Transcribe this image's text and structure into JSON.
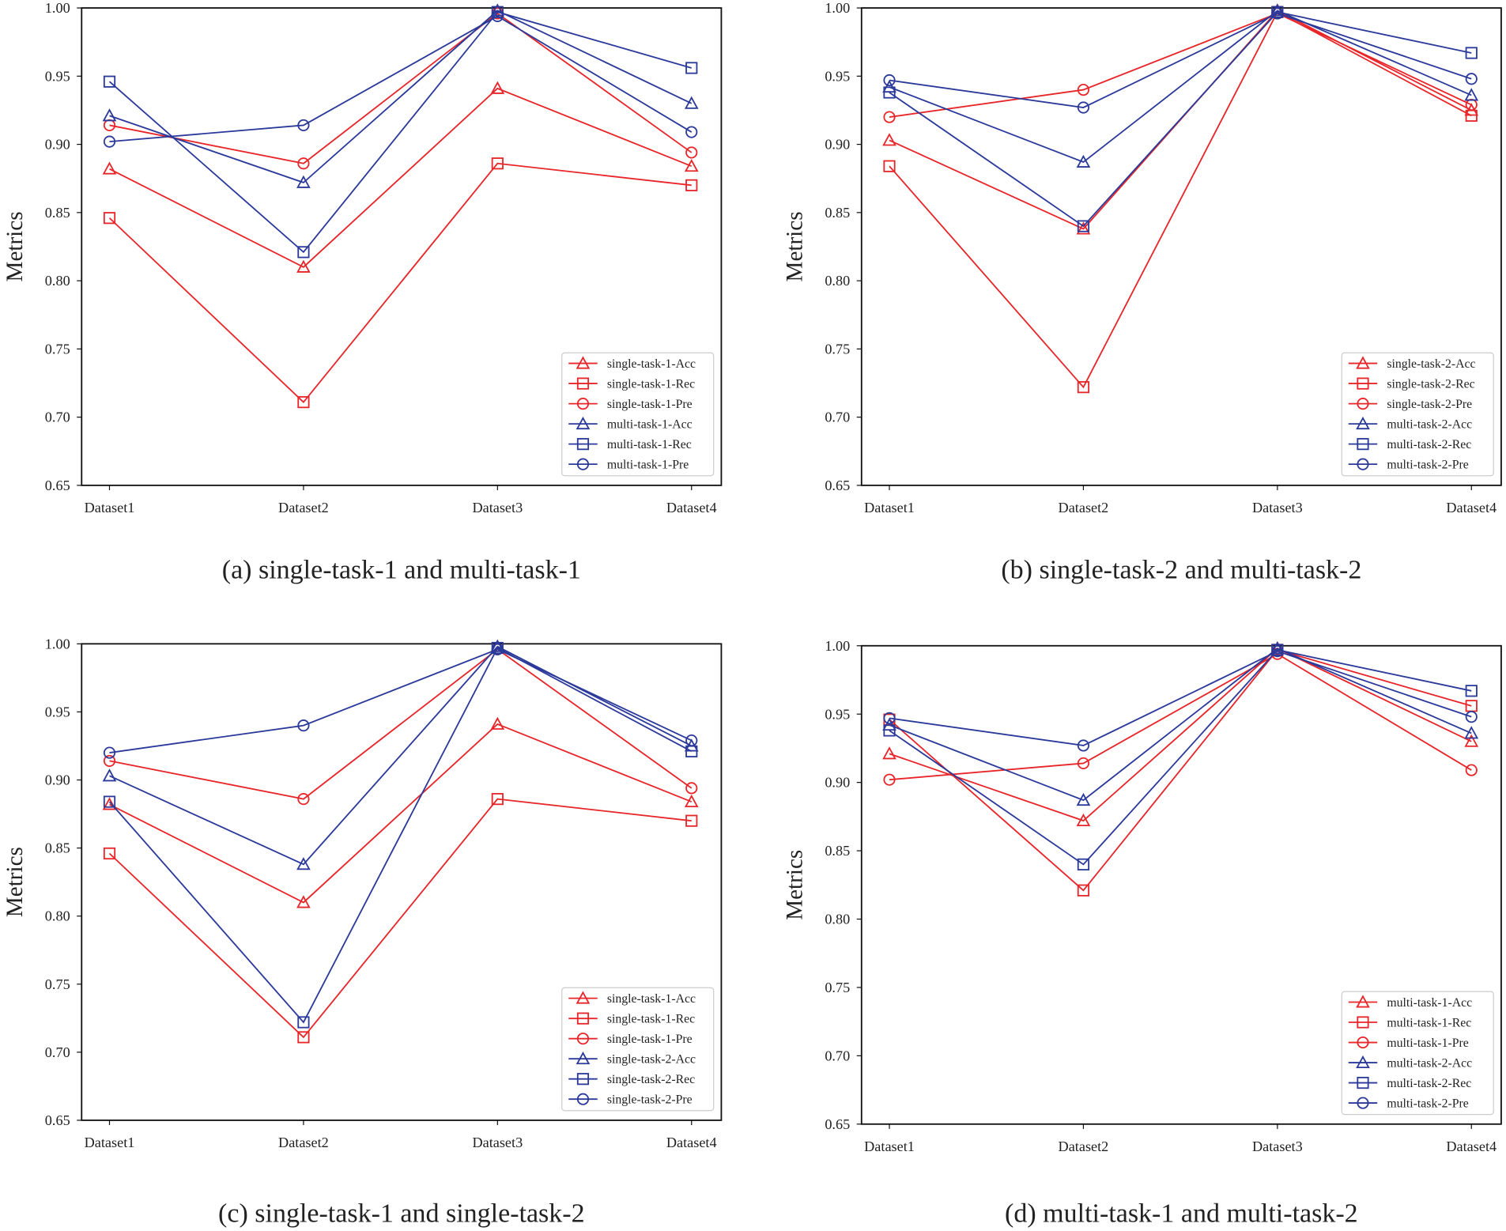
{
  "colors": {
    "red": "#e8262a",
    "blue": "#2b3a9a"
  },
  "chart_data": [
    {
      "type": "line",
      "caption": "(a) single-task-1 and multi-task-1",
      "ylabel": "Metrics",
      "categories": [
        "Dataset1",
        "Dataset2",
        "Dataset3",
        "Dataset4"
      ],
      "ylim": [
        0.65,
        1.0
      ],
      "yticks": [
        "0.65",
        "0.70",
        "0.75",
        "0.80",
        "0.85",
        "0.90",
        "0.95",
        "1.00"
      ],
      "grid": false,
      "legend_position": "lower-right",
      "series": [
        {
          "name": "single-task-1-Acc",
          "color": "red",
          "marker": "triangle",
          "values": [
            0.882,
            0.81,
            0.941,
            0.884
          ]
        },
        {
          "name": "single-task-1-Rec",
          "color": "red",
          "marker": "square",
          "values": [
            0.846,
            0.711,
            0.886,
            0.87
          ]
        },
        {
          "name": "single-task-1-Pre",
          "color": "red",
          "marker": "circle",
          "values": [
            0.914,
            0.886,
            0.996,
            0.894
          ]
        },
        {
          "name": "multi-task-1-Acc",
          "color": "blue",
          "marker": "triangle",
          "values": [
            0.921,
            0.872,
            0.998,
            0.93
          ]
        },
        {
          "name": "multi-task-1-Rec",
          "color": "blue",
          "marker": "square",
          "values": [
            0.946,
            0.821,
            0.997,
            0.956
          ]
        },
        {
          "name": "multi-task-1-Pre",
          "color": "blue",
          "marker": "circle",
          "values": [
            0.902,
            0.914,
            0.994,
            0.909
          ]
        }
      ]
    },
    {
      "type": "line",
      "caption": "(b) single-task-2 and multi-task-2",
      "ylabel": "Metrics",
      "categories": [
        "Dataset1",
        "Dataset2",
        "Dataset3",
        "Dataset4"
      ],
      "ylim": [
        0.65,
        1.0
      ],
      "yticks": [
        "0.65",
        "0.70",
        "0.75",
        "0.80",
        "0.85",
        "0.90",
        "0.95",
        "1.00"
      ],
      "grid": false,
      "legend_position": "lower-right",
      "series": [
        {
          "name": "single-task-2-Acc",
          "color": "red",
          "marker": "triangle",
          "values": [
            0.903,
            0.838,
            0.998,
            0.925
          ]
        },
        {
          "name": "single-task-2-Rec",
          "color": "red",
          "marker": "square",
          "values": [
            0.884,
            0.722,
            0.997,
            0.921
          ]
        },
        {
          "name": "single-task-2-Pre",
          "color": "red",
          "marker": "circle",
          "values": [
            0.92,
            0.94,
            0.996,
            0.929
          ]
        },
        {
          "name": "multi-task-2-Acc",
          "color": "blue",
          "marker": "triangle",
          "values": [
            0.942,
            0.887,
            0.998,
            0.936
          ]
        },
        {
          "name": "multi-task-2-Rec",
          "color": "blue",
          "marker": "square",
          "values": [
            0.938,
            0.84,
            0.997,
            0.967
          ]
        },
        {
          "name": "multi-task-2-Pre",
          "color": "blue",
          "marker": "circle",
          "values": [
            0.947,
            0.927,
            0.996,
            0.948
          ]
        }
      ]
    },
    {
      "type": "line",
      "caption": "(c) single-task-1 and single-task-2",
      "ylabel": "Metrics",
      "categories": [
        "Dataset1",
        "Dataset2",
        "Dataset3",
        "Dataset4"
      ],
      "ylim": [
        0.65,
        1.0
      ],
      "yticks": [
        "0.65",
        "0.70",
        "0.75",
        "0.80",
        "0.85",
        "0.90",
        "0.95",
        "1.00"
      ],
      "grid": false,
      "legend_position": "lower-right",
      "series": [
        {
          "name": "single-task-1-Acc",
          "color": "red",
          "marker": "triangle",
          "values": [
            0.882,
            0.81,
            0.941,
            0.884
          ]
        },
        {
          "name": "single-task-1-Rec",
          "color": "red",
          "marker": "square",
          "values": [
            0.846,
            0.711,
            0.886,
            0.87
          ]
        },
        {
          "name": "single-task-1-Pre",
          "color": "red",
          "marker": "circle",
          "values": [
            0.914,
            0.886,
            0.996,
            0.894
          ]
        },
        {
          "name": "single-task-2-Acc",
          "color": "blue",
          "marker": "triangle",
          "values": [
            0.903,
            0.838,
            0.998,
            0.925
          ]
        },
        {
          "name": "single-task-2-Rec",
          "color": "blue",
          "marker": "square",
          "values": [
            0.884,
            0.722,
            0.997,
            0.921
          ]
        },
        {
          "name": "single-task-2-Pre",
          "color": "blue",
          "marker": "circle",
          "values": [
            0.92,
            0.94,
            0.996,
            0.929
          ]
        }
      ]
    },
    {
      "type": "line",
      "caption": "(d) multi-task-1 and multi-task-2",
      "ylabel": "Metrics",
      "categories": [
        "Dataset1",
        "Dataset2",
        "Dataset3",
        "Dataset4"
      ],
      "ylim": [
        0.65,
        1.0
      ],
      "yticks": [
        "0.65",
        "0.70",
        "0.75",
        "0.80",
        "0.85",
        "0.90",
        "0.95",
        "1.00"
      ],
      "grid": false,
      "legend_position": "lower-right",
      "series": [
        {
          "name": "multi-task-1-Acc",
          "color": "red",
          "marker": "triangle",
          "values": [
            0.921,
            0.872,
            0.998,
            0.93
          ]
        },
        {
          "name": "multi-task-1-Rec",
          "color": "red",
          "marker": "square",
          "values": [
            0.946,
            0.821,
            0.997,
            0.956
          ]
        },
        {
          "name": "multi-task-1-Pre",
          "color": "red",
          "marker": "circle",
          "values": [
            0.902,
            0.914,
            0.994,
            0.909
          ]
        },
        {
          "name": "multi-task-2-Acc",
          "color": "blue",
          "marker": "triangle",
          "values": [
            0.942,
            0.887,
            0.998,
            0.936
          ]
        },
        {
          "name": "multi-task-2-Rec",
          "color": "blue",
          "marker": "square",
          "values": [
            0.938,
            0.84,
            0.997,
            0.967
          ]
        },
        {
          "name": "multi-task-2-Pre",
          "color": "blue",
          "marker": "circle",
          "values": [
            0.947,
            0.927,
            0.996,
            0.948
          ]
        }
      ]
    }
  ]
}
